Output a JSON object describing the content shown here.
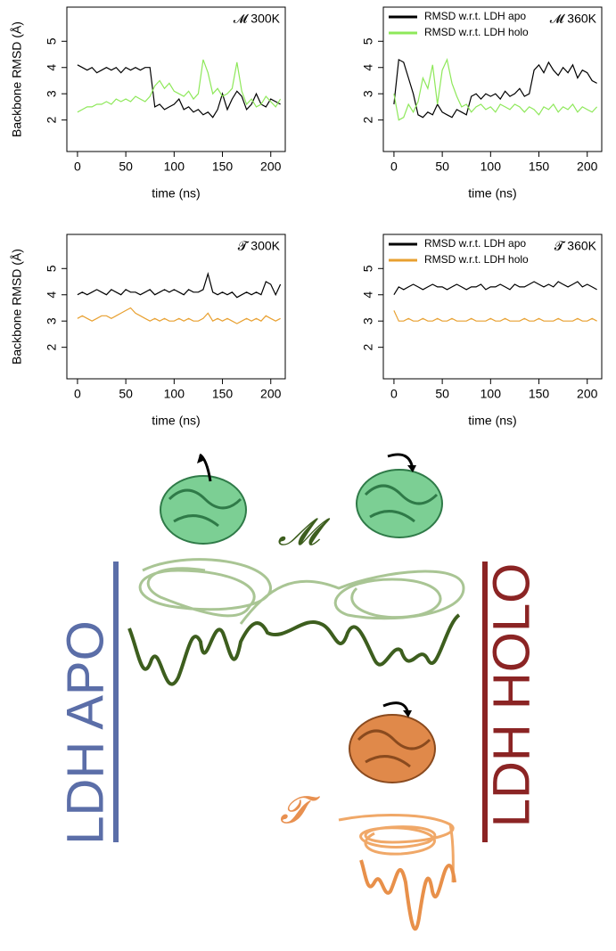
{
  "chart_data": [
    {
      "type": "line",
      "annotation": "𝓜 300K",
      "xlabel": "time (ns)",
      "ylabel": "Backbone RMSD (Å)",
      "x": [
        0,
        5,
        10,
        15,
        20,
        25,
        30,
        35,
        40,
        45,
        50,
        55,
        60,
        65,
        70,
        75,
        80,
        85,
        90,
        95,
        100,
        105,
        110,
        115,
        120,
        125,
        130,
        135,
        140,
        145,
        150,
        155,
        160,
        165,
        170,
        175,
        180,
        185,
        190,
        195,
        200,
        205,
        210
      ],
      "series": [
        {
          "color": "#000000",
          "values": [
            4.1,
            4.0,
            3.9,
            4.0,
            3.8,
            3.9,
            4.0,
            3.9,
            4.0,
            3.8,
            4.0,
            3.9,
            4.0,
            3.9,
            4.0,
            4.0,
            2.5,
            2.6,
            2.4,
            2.5,
            2.6,
            2.8,
            2.4,
            2.5,
            2.3,
            2.4,
            2.2,
            2.3,
            2.1,
            2.4,
            3.0,
            2.4,
            2.8,
            3.1,
            2.9,
            2.4,
            2.6,
            3.0,
            2.6,
            2.5,
            2.8,
            2.7,
            2.6
          ]
        },
        {
          "color": "#8ee85a",
          "values": [
            2.3,
            2.4,
            2.5,
            2.5,
            2.6,
            2.6,
            2.7,
            2.6,
            2.8,
            2.7,
            2.8,
            2.7,
            2.9,
            2.8,
            2.7,
            2.9,
            3.3,
            3.5,
            3.2,
            3.4,
            3.1,
            3.0,
            2.9,
            3.1,
            2.8,
            3.0,
            4.3,
            3.8,
            3.0,
            3.2,
            2.9,
            3.0,
            3.2,
            4.2,
            3.1,
            2.6,
            2.8,
            2.5,
            2.6,
            2.9,
            2.7,
            2.5,
            2.8
          ]
        }
      ],
      "xlim": [
        -11,
        215
      ],
      "ylim": [
        0.8,
        6.3
      ],
      "xticks": [
        0,
        50,
        100,
        150,
        200
      ],
      "yticks": [
        2,
        3,
        4,
        5
      ]
    },
    {
      "type": "line",
      "annotation": "𝓜 360K",
      "xlabel": "time (ns)",
      "legend": "top-left",
      "x": [
        0,
        5,
        10,
        15,
        20,
        25,
        30,
        35,
        40,
        45,
        50,
        55,
        60,
        65,
        70,
        75,
        80,
        85,
        90,
        95,
        100,
        105,
        110,
        115,
        120,
        125,
        130,
        135,
        140,
        145,
        150,
        155,
        160,
        165,
        170,
        175,
        180,
        185,
        190,
        195,
        200,
        205,
        210
      ],
      "series": [
        {
          "name": "RMSD w.r.t. LDH apo",
          "color": "#000000",
          "values": [
            2.6,
            4.3,
            4.2,
            3.6,
            3.0,
            2.2,
            2.1,
            2.3,
            2.2,
            2.6,
            2.3,
            2.2,
            2.1,
            2.4,
            2.3,
            2.2,
            2.9,
            3.0,
            2.8,
            3.0,
            2.9,
            3.0,
            2.8,
            3.1,
            2.9,
            3.0,
            3.2,
            2.9,
            3.0,
            3.9,
            4.1,
            3.8,
            4.2,
            3.9,
            3.7,
            4.0,
            3.8,
            4.1,
            3.6,
            3.9,
            3.8,
            3.5,
            3.4
          ]
        },
        {
          "name": "RMSD w.r.t. LDH holo",
          "color": "#8ee85a",
          "values": [
            3.0,
            2.0,
            2.1,
            2.6,
            2.3,
            2.7,
            3.6,
            3.2,
            4.1,
            2.6,
            3.9,
            4.3,
            3.4,
            2.9,
            2.5,
            2.6,
            2.3,
            2.5,
            2.6,
            2.4,
            2.5,
            2.3,
            2.6,
            2.5,
            2.4,
            2.6,
            2.5,
            2.3,
            2.5,
            2.4,
            2.2,
            2.5,
            2.4,
            2.6,
            2.3,
            2.5,
            2.4,
            2.6,
            2.3,
            2.5,
            2.4,
            2.3,
            2.5
          ]
        }
      ],
      "xlim": [
        -11,
        215
      ],
      "ylim": [
        0.8,
        6.3
      ],
      "xticks": [
        0,
        50,
        100,
        150,
        200
      ],
      "yticks": [
        2,
        3,
        4,
        5
      ]
    },
    {
      "type": "line",
      "annotation": "𝓣 300K",
      "xlabel": "time (ns)",
      "ylabel": "Backbone RMSD (Å)",
      "x": [
        0,
        5,
        10,
        15,
        20,
        25,
        30,
        35,
        40,
        45,
        50,
        55,
        60,
        65,
        70,
        75,
        80,
        85,
        90,
        95,
        100,
        105,
        110,
        115,
        120,
        125,
        130,
        135,
        140,
        145,
        150,
        155,
        160,
        165,
        170,
        175,
        180,
        185,
        190,
        195,
        200,
        205,
        210
      ],
      "series": [
        {
          "color": "#000000",
          "values": [
            4.0,
            4.1,
            4.0,
            4.1,
            4.2,
            4.1,
            4.0,
            4.2,
            4.1,
            4.0,
            4.2,
            4.1,
            4.1,
            4.0,
            4.1,
            4.2,
            4.0,
            4.1,
            4.2,
            4.1,
            4.2,
            4.1,
            4.0,
            4.2,
            4.1,
            4.1,
            4.2,
            4.8,
            4.1,
            4.0,
            4.1,
            4.0,
            4.1,
            3.9,
            4.0,
            4.1,
            4.0,
            4.1,
            4.0,
            4.5,
            4.4,
            4.0,
            4.4
          ]
        },
        {
          "color": "#e8a030",
          "values": [
            3.1,
            3.2,
            3.1,
            3.0,
            3.1,
            3.2,
            3.2,
            3.1,
            3.2,
            3.3,
            3.4,
            3.5,
            3.3,
            3.2,
            3.1,
            3.0,
            3.1,
            3.0,
            3.1,
            3.0,
            3.0,
            3.1,
            3.0,
            3.1,
            3.0,
            3.0,
            3.1,
            3.3,
            3.0,
            3.1,
            3.0,
            3.1,
            3.0,
            2.9,
            3.0,
            3.1,
            3.0,
            3.1,
            3.0,
            3.2,
            3.1,
            3.0,
            3.1
          ]
        }
      ],
      "xlim": [
        -11,
        215
      ],
      "ylim": [
        0.8,
        6.3
      ],
      "xticks": [
        0,
        50,
        100,
        150,
        200
      ],
      "yticks": [
        2,
        3,
        4,
        5
      ]
    },
    {
      "type": "line",
      "annotation": "𝓣 360K",
      "xlabel": "time (ns)",
      "legend": "top-left",
      "x": [
        0,
        5,
        10,
        15,
        20,
        25,
        30,
        35,
        40,
        45,
        50,
        55,
        60,
        65,
        70,
        75,
        80,
        85,
        90,
        95,
        100,
        105,
        110,
        115,
        120,
        125,
        130,
        135,
        140,
        145,
        150,
        155,
        160,
        165,
        170,
        175,
        180,
        185,
        190,
        195,
        200,
        205,
        210
      ],
      "series": [
        {
          "name": "RMSD w.r.t. LDH apo",
          "color": "#000000",
          "values": [
            4.0,
            4.3,
            4.2,
            4.3,
            4.4,
            4.3,
            4.2,
            4.3,
            4.4,
            4.3,
            4.3,
            4.2,
            4.3,
            4.4,
            4.3,
            4.2,
            4.3,
            4.3,
            4.4,
            4.2,
            4.3,
            4.3,
            4.4,
            4.3,
            4.2,
            4.4,
            4.3,
            4.3,
            4.4,
            4.5,
            4.4,
            4.3,
            4.4,
            4.3,
            4.5,
            4.4,
            4.3,
            4.4,
            4.5,
            4.3,
            4.4,
            4.3,
            4.2
          ]
        },
        {
          "name": "RMSD w.r.t. LDH holo",
          "color": "#e8a030",
          "values": [
            3.4,
            3.0,
            3.0,
            3.1,
            3.0,
            3.0,
            3.1,
            3.0,
            3.0,
            3.1,
            3.0,
            3.0,
            3.1,
            3.0,
            3.0,
            3.0,
            3.1,
            3.0,
            3.0,
            3.0,
            3.1,
            3.0,
            3.0,
            3.1,
            3.0,
            3.0,
            3.0,
            3.1,
            3.0,
            3.0,
            3.1,
            3.0,
            3.0,
            3.0,
            3.1,
            3.0,
            3.0,
            3.0,
            3.1,
            3.0,
            3.0,
            3.1,
            3.0
          ]
        }
      ],
      "xlim": [
        -11,
        215
      ],
      "ylim": [
        0.8,
        6.3
      ],
      "xticks": [
        0,
        50,
        100,
        150,
        200
      ],
      "yticks": [
        2,
        3,
        4,
        5
      ]
    }
  ],
  "diagram": {
    "apo_label": "LDH APO",
    "holo_label": "LDH HOLO",
    "m_label": "𝓜",
    "t_label": "𝓣"
  }
}
